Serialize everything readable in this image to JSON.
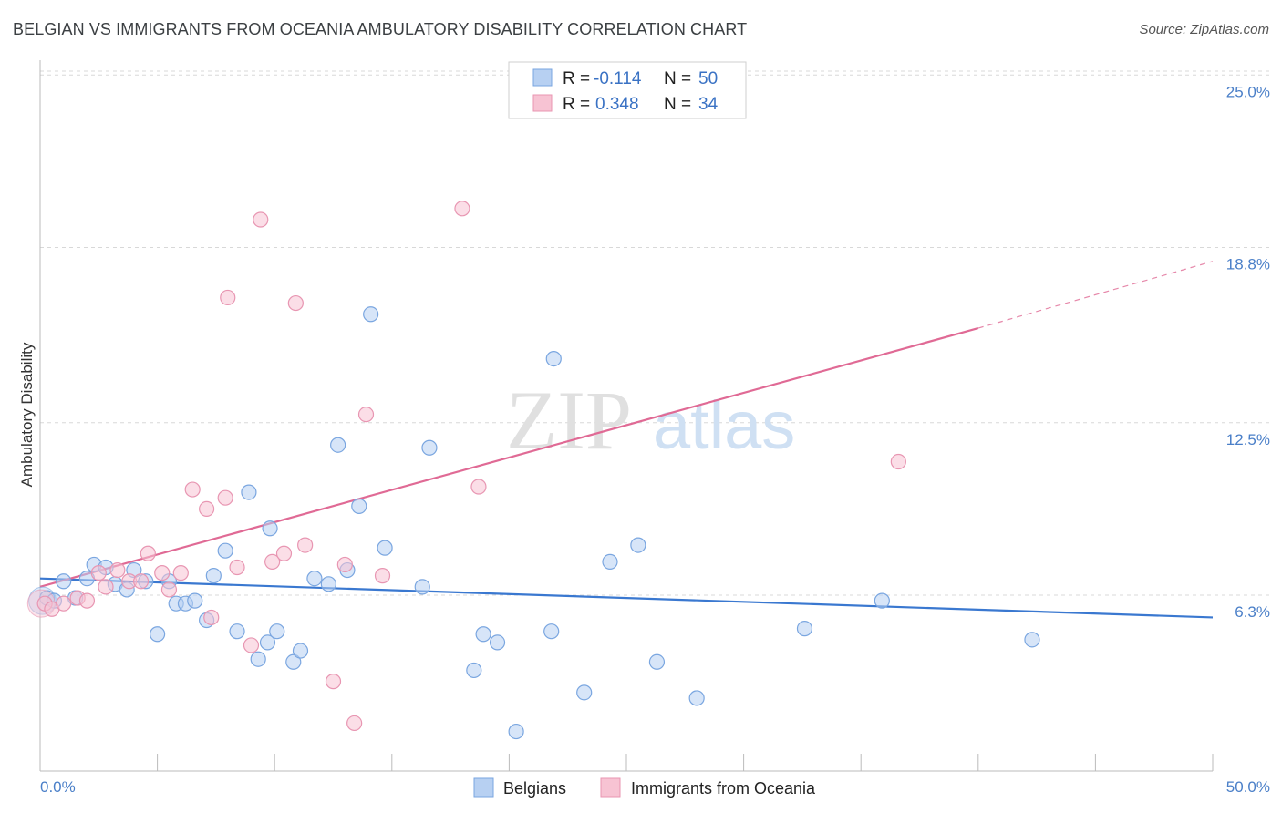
{
  "header": {
    "title": "BELGIAN VS IMMIGRANTS FROM OCEANIA AMBULATORY DISABILITY CORRELATION CHART",
    "source": "Source: ZipAtlas.com"
  },
  "watermark": {
    "zip": "ZIP",
    "atlas": "atlas"
  },
  "colors": {
    "blue": "#3a78d0",
    "blue_fill": "#b7d0f2",
    "pink": "#e06a95",
    "pink_fill": "#f7c3d3",
    "tick_label": "#4a7fc8",
    "grid": "#d8d8d8"
  },
  "stats_legend": [
    {
      "r_label": "R =",
      "r_value": "-0.114",
      "n_label": "N =",
      "n_value": "50"
    },
    {
      "r_label": "R =",
      "r_value": "0.348",
      "n_label": "N =",
      "n_value": "34"
    }
  ],
  "chart_data": {
    "type": "scatter",
    "title": "BELGIAN VS IMMIGRANTS FROM OCEANIA AMBULATORY DISABILITY CORRELATION CHART",
    "xlabel": "",
    "ylabel": "Ambulatory Disability",
    "xlim": [
      0,
      50
    ],
    "ylim": [
      0,
      26
    ],
    "x_tick_labels": [
      "0.0%",
      "50.0%"
    ],
    "y_ticks": [
      6.3,
      12.5,
      18.8,
      25.0
    ],
    "y_tick_labels": [
      "6.3%",
      "12.5%",
      "18.8%",
      "25.0%"
    ],
    "grid": "horizontal dashed",
    "legend_position": "bottom-center",
    "series": [
      {
        "name": "Belgians",
        "points": [
          [
            0.3,
            6.2
          ],
          [
            0.6,
            6.1
          ],
          [
            1.0,
            6.8
          ],
          [
            1.5,
            6.2
          ],
          [
            2.0,
            6.9
          ],
          [
            2.3,
            7.4
          ],
          [
            2.8,
            7.3
          ],
          [
            3.2,
            6.7
          ],
          [
            3.7,
            6.5
          ],
          [
            4.0,
            7.2
          ],
          [
            4.5,
            6.8
          ],
          [
            5.0,
            4.9
          ],
          [
            5.5,
            6.8
          ],
          [
            5.8,
            6.0
          ],
          [
            6.2,
            6.0
          ],
          [
            6.6,
            6.1
          ],
          [
            7.1,
            5.4
          ],
          [
            7.4,
            7.0
          ],
          [
            7.9,
            7.9
          ],
          [
            8.4,
            5.0
          ],
          [
            8.9,
            10.0
          ],
          [
            9.3,
            4.0
          ],
          [
            9.8,
            8.7
          ],
          [
            9.7,
            4.6
          ],
          [
            10.1,
            5.0
          ],
          [
            10.8,
            3.9
          ],
          [
            11.1,
            4.3
          ],
          [
            11.7,
            6.9
          ],
          [
            12.3,
            6.7
          ],
          [
            12.7,
            11.7
          ],
          [
            13.1,
            7.2
          ],
          [
            13.6,
            9.5
          ],
          [
            14.1,
            16.4
          ],
          [
            14.7,
            8.0
          ],
          [
            16.3,
            6.6
          ],
          [
            16.6,
            11.6
          ],
          [
            18.5,
            3.6
          ],
          [
            18.9,
            4.9
          ],
          [
            19.5,
            4.6
          ],
          [
            20.3,
            1.4
          ],
          [
            21.8,
            5.0
          ],
          [
            21.9,
            14.8
          ],
          [
            23.2,
            2.8
          ],
          [
            24.3,
            7.5
          ],
          [
            25.5,
            8.1
          ],
          [
            26.3,
            3.9
          ],
          [
            28.0,
            2.6
          ],
          [
            32.6,
            5.1
          ],
          [
            35.9,
            6.1
          ],
          [
            42.3,
            4.7
          ]
        ],
        "trend": {
          "x": [
            0,
            50
          ],
          "y": [
            6.9,
            5.5
          ]
        }
      },
      {
        "name": "Immigrants from Oceania",
        "points": [
          [
            0.2,
            6.0
          ],
          [
            0.5,
            5.8
          ],
          [
            1.0,
            6.0
          ],
          [
            1.6,
            6.2
          ],
          [
            2.0,
            6.1
          ],
          [
            2.5,
            7.1
          ],
          [
            2.8,
            6.6
          ],
          [
            3.3,
            7.2
          ],
          [
            3.8,
            6.8
          ],
          [
            4.3,
            6.8
          ],
          [
            4.6,
            7.8
          ],
          [
            5.2,
            7.1
          ],
          [
            5.5,
            6.5
          ],
          [
            6.0,
            7.1
          ],
          [
            6.5,
            10.1
          ],
          [
            7.1,
            9.4
          ],
          [
            7.3,
            5.5
          ],
          [
            7.9,
            9.8
          ],
          [
            8.4,
            7.3
          ],
          [
            8.0,
            17.0
          ],
          [
            9.0,
            4.5
          ],
          [
            9.4,
            19.8
          ],
          [
            9.9,
            7.5
          ],
          [
            10.4,
            7.8
          ],
          [
            10.9,
            16.8
          ],
          [
            11.3,
            8.1
          ],
          [
            12.5,
            3.2
          ],
          [
            13.0,
            7.4
          ],
          [
            13.4,
            1.7
          ],
          [
            13.9,
            12.8
          ],
          [
            14.6,
            7.0
          ],
          [
            18.0,
            20.2
          ],
          [
            18.7,
            10.2
          ],
          [
            36.6,
            11.1
          ]
        ],
        "trend": {
          "x": [
            0,
            40
          ],
          "y": [
            6.6,
            15.9
          ]
        },
        "trend_extension": {
          "x": [
            40,
            50
          ],
          "y": [
            15.9,
            18.3
          ]
        }
      }
    ]
  },
  "bottom_legend": [
    {
      "label": "Belgians"
    },
    {
      "label": "Immigrants from Oceania"
    }
  ]
}
